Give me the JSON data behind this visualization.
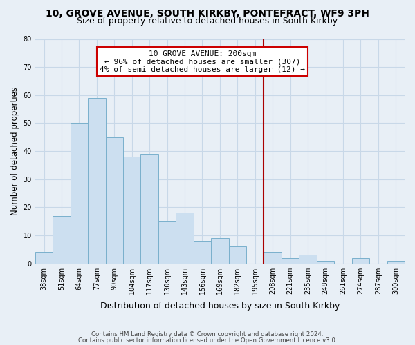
{
  "title_line1": "10, GROVE AVENUE, SOUTH KIRKBY, PONTEFRACT, WF9 3PH",
  "title_line2": "Size of property relative to detached houses in South Kirkby",
  "xlabel": "Distribution of detached houses by size in South Kirkby",
  "ylabel": "Number of detached properties",
  "categories": [
    "38sqm",
    "51sqm",
    "64sqm",
    "77sqm",
    "90sqm",
    "104sqm",
    "117sqm",
    "130sqm",
    "143sqm",
    "156sqm",
    "169sqm",
    "182sqm",
    "195sqm",
    "208sqm",
    "221sqm",
    "235sqm",
    "248sqm",
    "261sqm",
    "274sqm",
    "287sqm",
    "300sqm"
  ],
  "values": [
    4,
    17,
    50,
    59,
    45,
    38,
    39,
    15,
    18,
    8,
    9,
    6,
    0,
    4,
    2,
    3,
    1,
    0,
    2,
    0,
    1
  ],
  "bar_color": "#ccdff0",
  "bar_edge_color": "#7ab0cc",
  "vline_color": "#aa0000",
  "ylim": [
    0,
    80
  ],
  "yticks": [
    0,
    10,
    20,
    30,
    40,
    50,
    60,
    70,
    80
  ],
  "annotation_title": "10 GROVE AVENUE: 200sqm",
  "annotation_line1": "← 96% of detached houses are smaller (307)",
  "annotation_line2": "4% of semi-detached houses are larger (12) →",
  "annotation_box_color": "#ffffff",
  "annotation_box_edge": "#cc0000",
  "footer_line1": "Contains HM Land Registry data © Crown copyright and database right 2024.",
  "footer_line2": "Contains public sector information licensed under the Open Government Licence v3.0.",
  "grid_color": "#c8d8e8",
  "background_color": "#e8eff6"
}
